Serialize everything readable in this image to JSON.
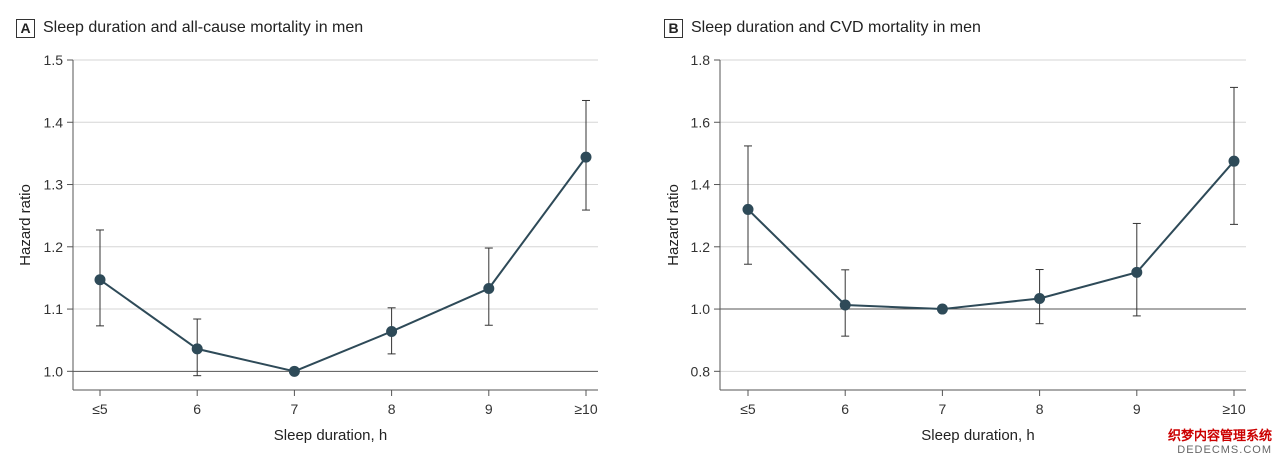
{
  "chart_data": [
    {
      "panel_letter": "A",
      "type": "line",
      "title": "Sleep duration and all-cause mortality in men",
      "xlabel": "Sleep duration, h",
      "ylabel": "Hazard ratio",
      "categories": [
        "≤5",
        "6",
        "7",
        "8",
        "9",
        "≥10"
      ],
      "values": [
        1.147,
        1.036,
        1.0,
        1.064,
        1.133,
        1.344
      ],
      "ci_lower": [
        1.073,
        0.993,
        1.0,
        1.028,
        1.074,
        1.259
      ],
      "ci_upper": [
        1.227,
        1.084,
        1.0,
        1.102,
        1.198,
        1.435
      ],
      "ylim": [
        0.97,
        1.5
      ],
      "yticks": [
        1.0,
        1.1,
        1.2,
        1.3,
        1.4,
        1.5
      ],
      "ytick_labels": [
        "1.0",
        "1.1",
        "1.2",
        "1.3",
        "1.4",
        "1.5"
      ],
      "reference_line": 1.0,
      "grid": true
    },
    {
      "panel_letter": "B",
      "type": "line",
      "title": "Sleep duration and CVD mortality in men",
      "xlabel": "Sleep duration, h",
      "ylabel": "Hazard ratio",
      "categories": [
        "≤5",
        "6",
        "7",
        "8",
        "9",
        "≥10"
      ],
      "values": [
        1.32,
        1.013,
        1.0,
        1.034,
        1.118,
        1.475
      ],
      "ci_lower": [
        1.144,
        0.913,
        1.0,
        0.953,
        0.978,
        1.272
      ],
      "ci_upper": [
        1.524,
        1.126,
        1.0,
        1.127,
        1.275,
        1.712
      ],
      "ylim": [
        0.74,
        1.8
      ],
      "yticks": [
        0.8,
        1.0,
        1.2,
        1.4,
        1.6,
        1.8
      ],
      "ytick_labels": [
        "0.8",
        "1.0",
        "1.2",
        "1.4",
        "1.6",
        "1.8"
      ],
      "reference_line": 1.0,
      "grid": true
    }
  ],
  "colors": {
    "marker": "#2e4a58",
    "line": "#2e4a58",
    "errorbar": "#333333",
    "grid": "#d6d6d6",
    "axis": "#555555"
  },
  "watermark": {
    "line1": "织梦内容管理系统",
    "line2": "DEDECMS.COM"
  }
}
